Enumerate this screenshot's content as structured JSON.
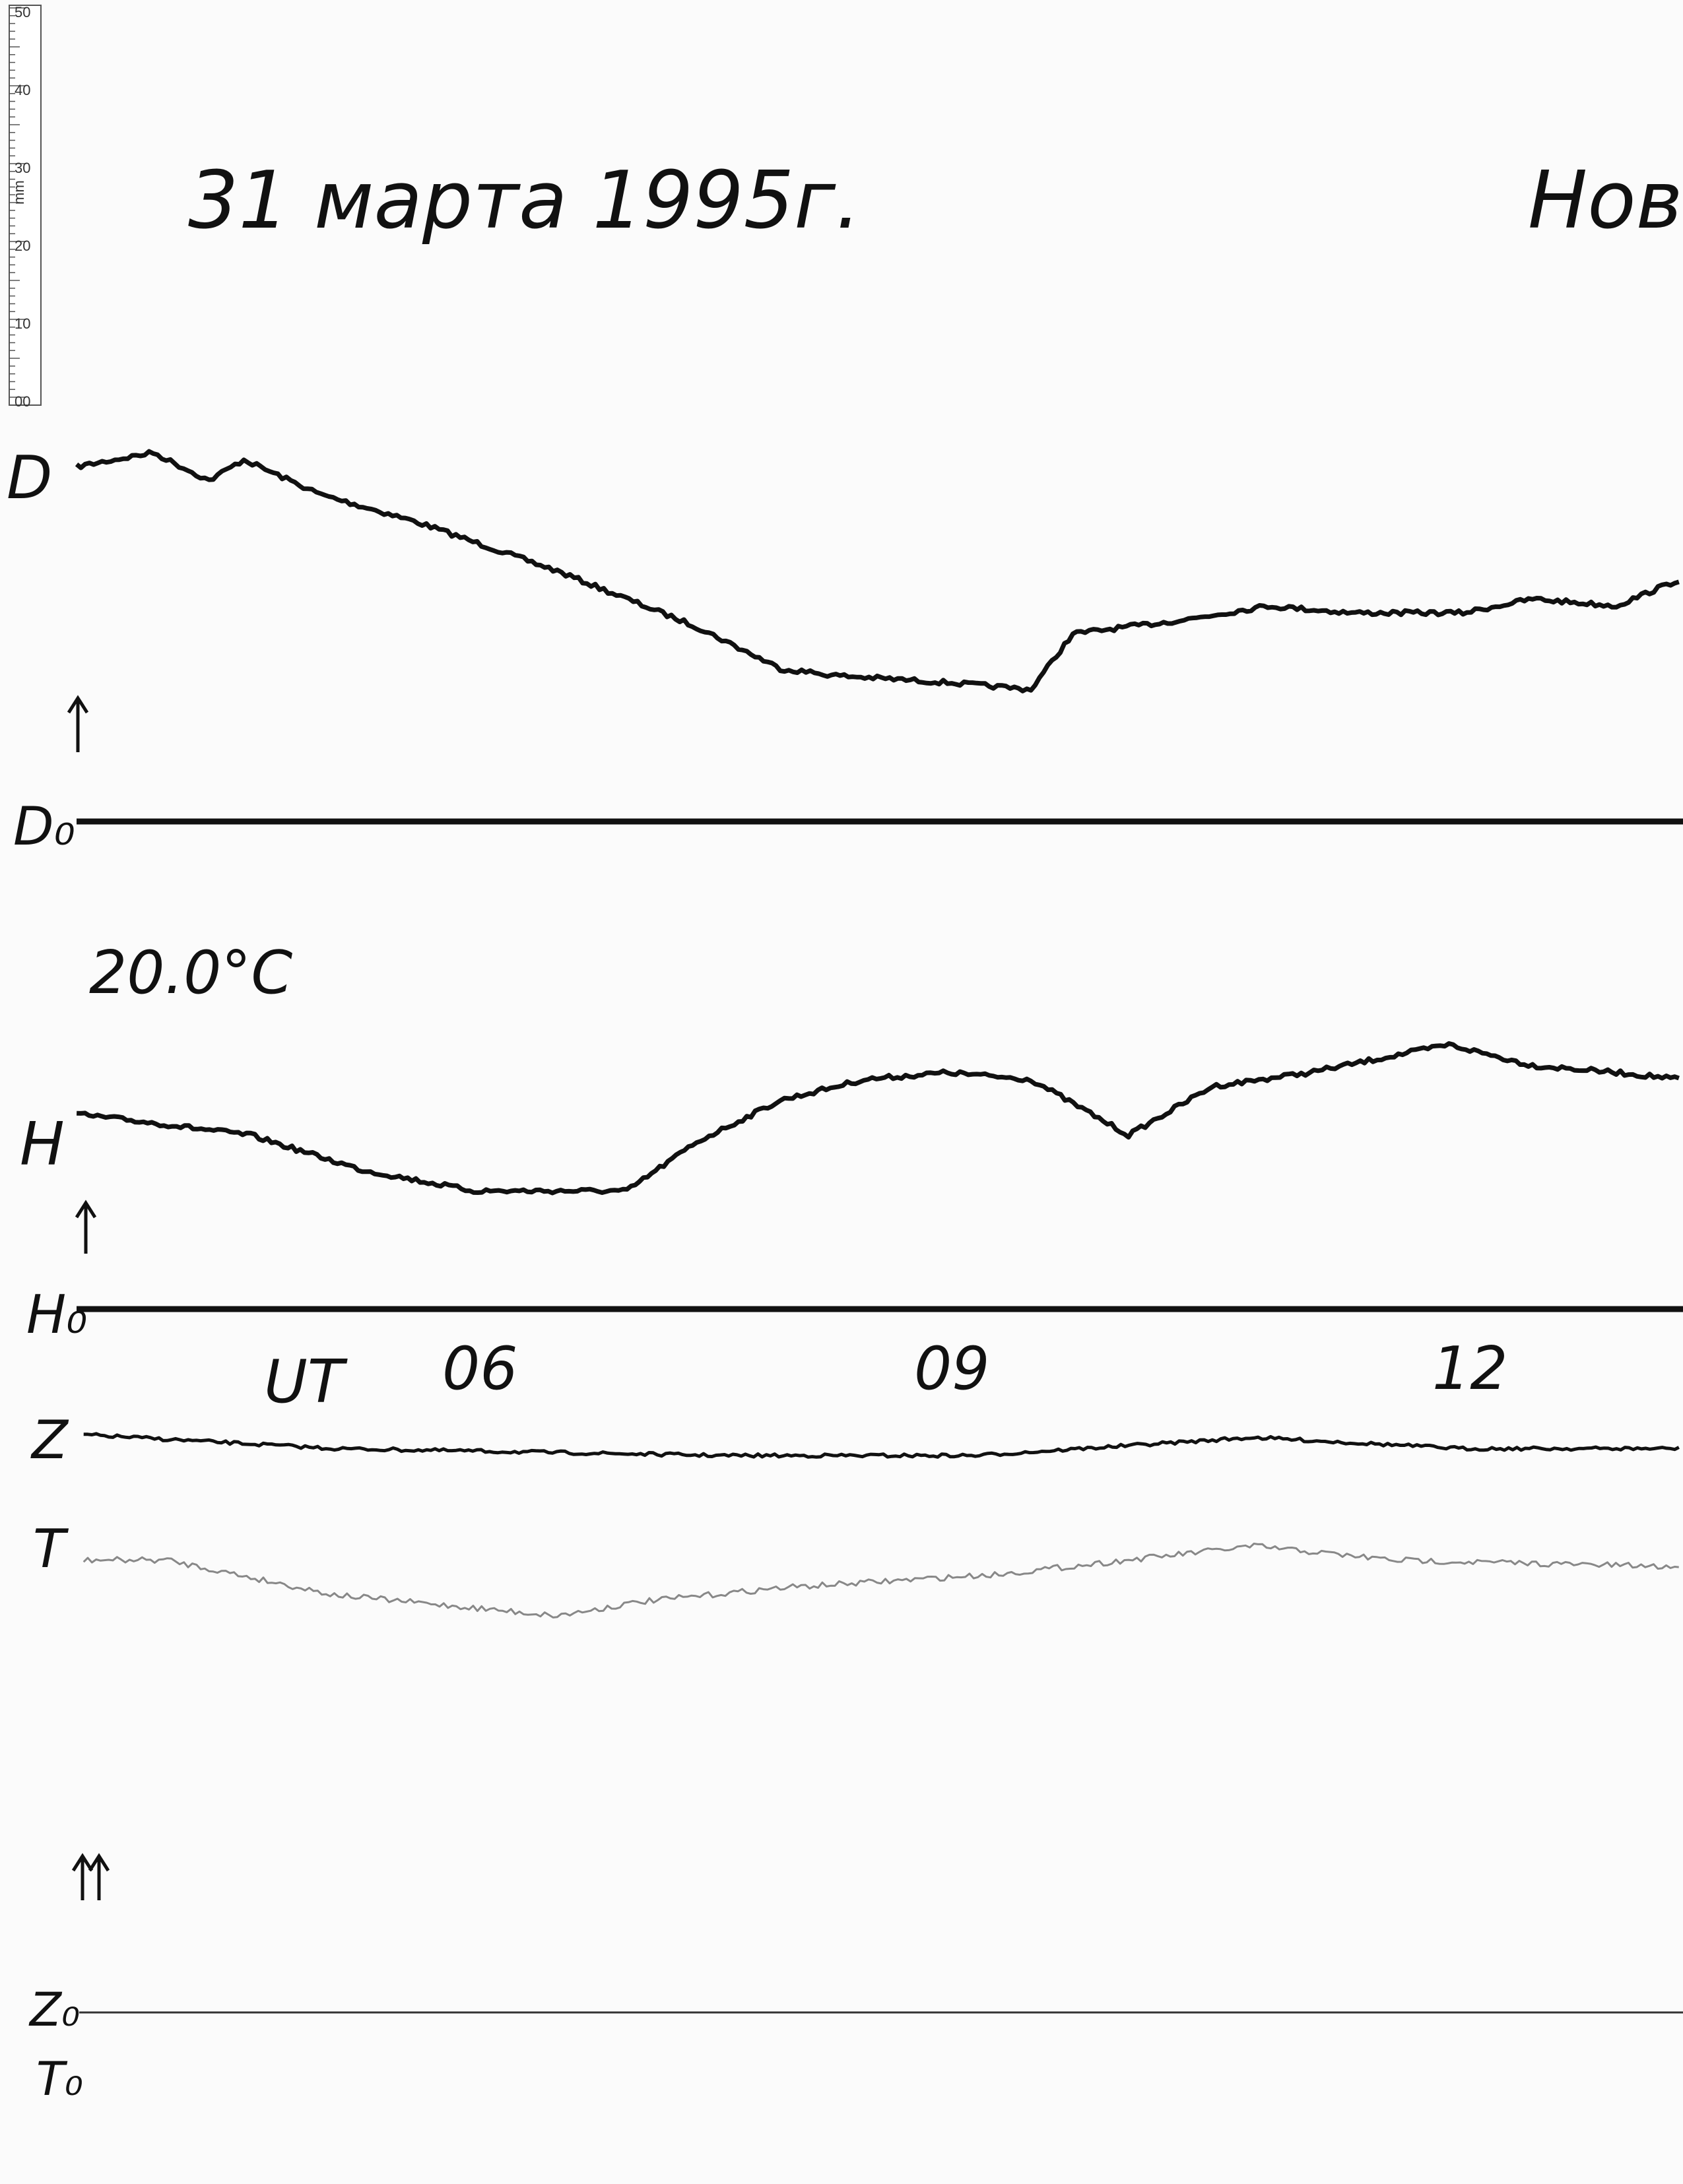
{
  "header": {
    "date": "31 марта 1995г.",
    "station": "Нов"
  },
  "ruler": {
    "unit": "mm",
    "labels": [
      "50",
      "40",
      "30",
      "20",
      "10",
      "00"
    ]
  },
  "traces": {
    "D": "D",
    "D0": "D₀",
    "temperature": "20.0°C",
    "H": "H",
    "H0": "H₀",
    "Z": "Z",
    "T": "T",
    "Z0": "Z₀",
    "T0": "T₀"
  },
  "time_axis": {
    "unit": "UT",
    "labels": [
      "06",
      "09",
      "12"
    ]
  }
}
